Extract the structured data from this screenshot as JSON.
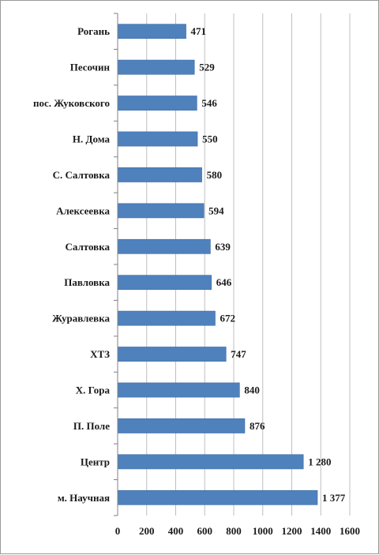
{
  "chart_data": {
    "type": "bar",
    "orientation": "horizontal",
    "categories": [
      "Рогань",
      "Песочин",
      "пос. Жуковского",
      "Н. Дома",
      "С. Салтовка",
      "Алексеевка",
      "Салтовка",
      "Павловка",
      "Журавлевка",
      "ХТЗ",
      "Х. Гора",
      "П. Поле",
      "Центр",
      "м. Научная"
    ],
    "values": [
      471,
      529,
      546,
      550,
      580,
      594,
      639,
      646,
      672,
      747,
      840,
      876,
      1280,
      1377
    ],
    "value_labels": [
      "471",
      "529",
      "546",
      "550",
      "580",
      "594",
      "639",
      "646",
      "672",
      "747",
      "840",
      "876",
      "1 280",
      "1 377"
    ],
    "xlim": [
      0,
      1600
    ],
    "xticks": [
      0,
      200,
      400,
      600,
      800,
      1000,
      1200,
      1400,
      1600
    ],
    "xtick_labels": [
      "0",
      "200",
      "400",
      "600",
      "800",
      "1000",
      "1200",
      "1400",
      "1600"
    ],
    "title": "",
    "xlabel": "",
    "ylabel": "",
    "grid": "vertical",
    "legend": "none",
    "colors": {
      "bar": "#4f81bd",
      "bar_edge": "#3b6aa3",
      "grid": "#bfbfbf",
      "axis": "#808080"
    }
  }
}
